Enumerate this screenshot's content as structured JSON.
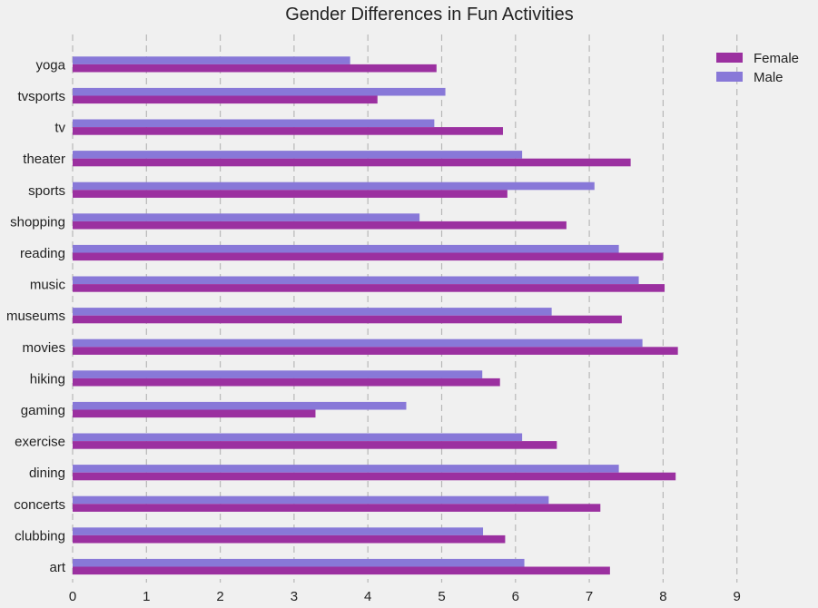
{
  "chart_data": {
    "type": "bar",
    "orientation": "horizontal",
    "title": "Gender Differences in Fun Activities",
    "xlabel": "",
    "ylabel": "",
    "xlim": [
      0,
      10
    ],
    "xticks": [
      0,
      1,
      2,
      3,
      4,
      5,
      6,
      7,
      8,
      9
    ],
    "grid": "vertical dashed",
    "legend_position": "top-right",
    "categories": [
      "art",
      "clubbing",
      "concerts",
      "dining",
      "exercise",
      "gaming",
      "hiking",
      "movies",
      "museums",
      "music",
      "reading",
      "shopping",
      "sports",
      "theater",
      "tv",
      "tvsports",
      "yoga"
    ],
    "series": [
      {
        "name": "Female",
        "color": "#9b30a0",
        "values": [
          7.28,
          5.86,
          7.15,
          8.17,
          6.56,
          3.29,
          5.79,
          8.2,
          7.44,
          8.02,
          8.0,
          6.69,
          5.89,
          7.56,
          5.83,
          4.13,
          4.93
        ]
      },
      {
        "name": "Male",
        "color": "#8878d8",
        "values": [
          6.12,
          5.56,
          6.45,
          7.4,
          6.09,
          4.52,
          5.55,
          7.72,
          6.49,
          7.67,
          7.4,
          4.7,
          7.07,
          6.09,
          4.9,
          5.05,
          3.76
        ]
      }
    ]
  }
}
